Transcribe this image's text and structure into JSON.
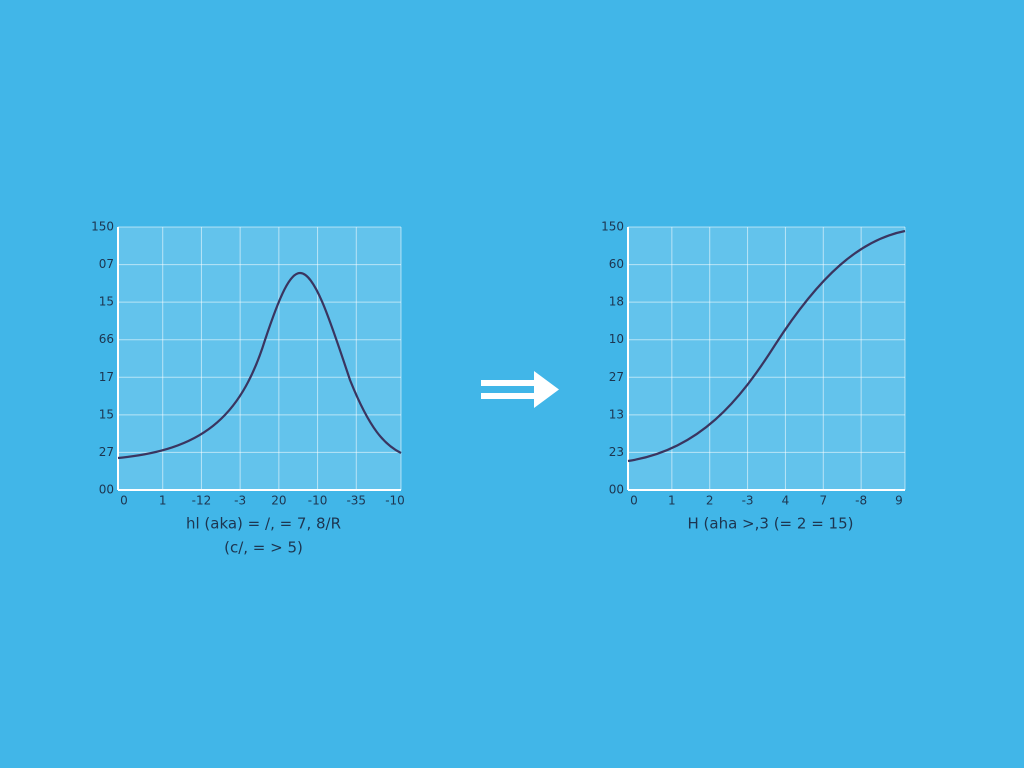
{
  "panels": [
    {
      "y_labels": [
        "150",
        "07",
        "15",
        "66",
        "17",
        "15",
        "27",
        "00"
      ],
      "x_labels": [
        "0",
        "1",
        "-12",
        "-3",
        "20",
        "-10",
        "-35",
        "-10"
      ],
      "caption": [
        "hl (aka) = /, = 7, 8/R",
        "(c/, = > 5)"
      ]
    },
    {
      "y_labels": [
        "150",
        "60",
        "18",
        "10",
        "27",
        "13",
        "23",
        "00"
      ],
      "x_labels": [
        "0",
        "1",
        "2",
        "-3",
        "4",
        "7",
        "-8",
        "9"
      ],
      "caption": [
        "H (aha >,3 (= 2 = 15)"
      ]
    }
  ]
}
